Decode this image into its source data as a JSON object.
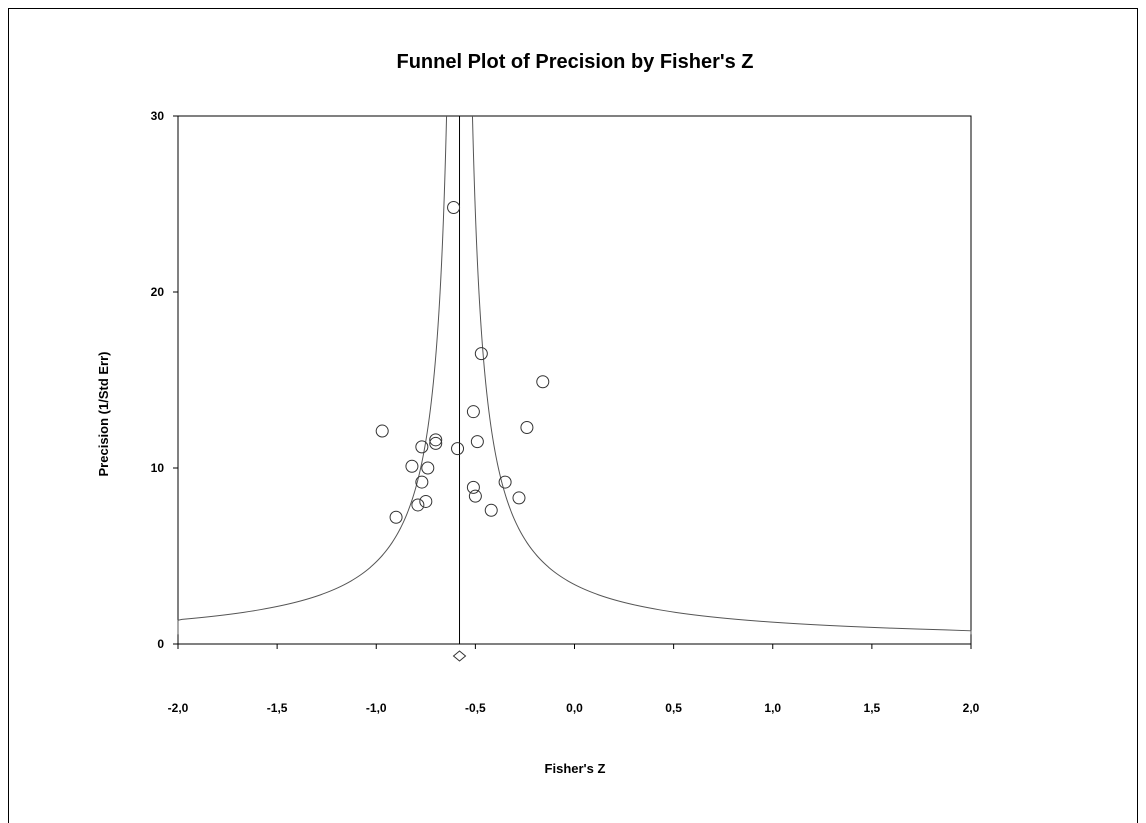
{
  "chart_data": {
    "type": "scatter",
    "title": "Funnel Plot of Precision by Fisher's Z",
    "xlabel": "Fisher's Z",
    "ylabel": "Precision (1/Std Err)",
    "xlim": [
      -2.0,
      2.0
    ],
    "ylim": [
      0,
      30
    ],
    "x_ticks": [
      "-2,0",
      "-1,5",
      "-1,0",
      "-0,5",
      "0,0",
      "0,5",
      "1,0",
      "1,5",
      "2,0"
    ],
    "x_tick_values": [
      -2.0,
      -1.5,
      -1.0,
      -0.5,
      0.0,
      0.5,
      1.0,
      1.5,
      2.0
    ],
    "y_ticks": [
      "0",
      "10",
      "20",
      "30"
    ],
    "y_tick_values": [
      0,
      10,
      20,
      30
    ],
    "pooled_estimate": -0.58,
    "grid": false,
    "points": [
      {
        "x": -0.61,
        "y": 24.8
      },
      {
        "x": -0.47,
        "y": 16.5
      },
      {
        "x": -0.16,
        "y": 14.9
      },
      {
        "x": -0.51,
        "y": 13.2
      },
      {
        "x": -0.24,
        "y": 12.3
      },
      {
        "x": -0.97,
        "y": 12.1
      },
      {
        "x": -0.7,
        "y": 11.6
      },
      {
        "x": -0.7,
        "y": 11.4
      },
      {
        "x": -0.49,
        "y": 11.5
      },
      {
        "x": -0.77,
        "y": 11.2
      },
      {
        "x": -0.59,
        "y": 11.1
      },
      {
        "x": -0.82,
        "y": 10.1
      },
      {
        "x": -0.74,
        "y": 10.0
      },
      {
        "x": -0.77,
        "y": 9.2
      },
      {
        "x": -0.35,
        "y": 9.2
      },
      {
        "x": -0.51,
        "y": 8.9
      },
      {
        "x": -0.5,
        "y": 8.4
      },
      {
        "x": -0.28,
        "y": 8.3
      },
      {
        "x": -0.75,
        "y": 8.1
      },
      {
        "x": -0.79,
        "y": 7.9
      },
      {
        "x": -0.42,
        "y": 7.6
      },
      {
        "x": -0.9,
        "y": 7.2
      }
    ]
  }
}
